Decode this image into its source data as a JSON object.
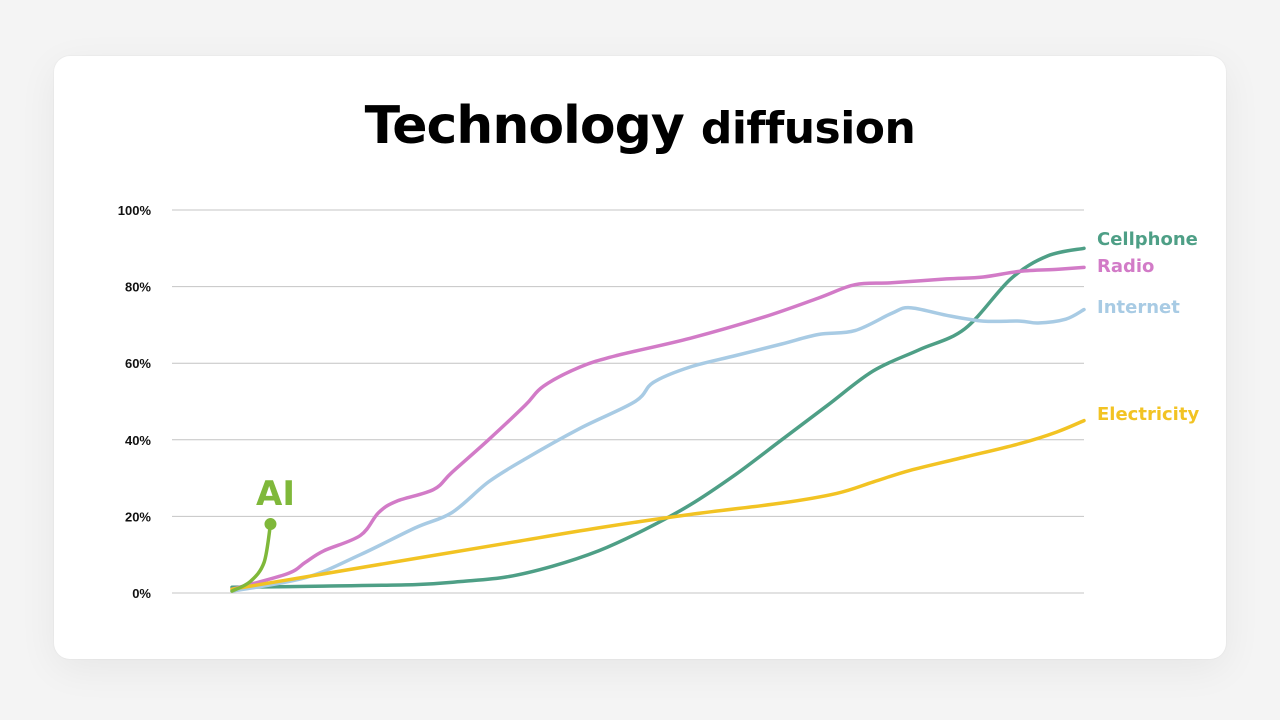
{
  "chart_data": {
    "type": "line",
    "title": "Technology",
    "subtitle": "diffusion",
    "ylim": [
      0,
      100
    ],
    "xlim": [
      0,
      100
    ],
    "y_ticks": [
      {
        "value": 0,
        "label": "0%"
      },
      {
        "value": 20,
        "label": "20%"
      },
      {
        "value": 40,
        "label": "40%"
      },
      {
        "value": 60,
        "label": "60%"
      },
      {
        "value": 80,
        "label": "80%"
      },
      {
        "value": 100,
        "label": "100%"
      }
    ],
    "grid": true,
    "legend": "inline-right",
    "series": [
      {
        "name": "Cellphone",
        "color": "#4e9f86",
        "points": [
          [
            0,
            1.5
          ],
          [
            10,
            1.8
          ],
          [
            20,
            2.2
          ],
          [
            25,
            3
          ],
          [
            30,
            4.2
          ],
          [
            35,
            7
          ],
          [
            40,
            11
          ],
          [
            45,
            16.5
          ],
          [
            50,
            23
          ],
          [
            55,
            31
          ],
          [
            60,
            40
          ],
          [
            65,
            49
          ],
          [
            70,
            58
          ],
          [
            75,
            63.5
          ],
          [
            80,
            69
          ],
          [
            85,
            82
          ],
          [
            89,
            88
          ],
          [
            93,
            90
          ]
        ]
      },
      {
        "name": "Radio",
        "color": "#d27bc7",
        "points": [
          [
            0,
            1
          ],
          [
            6,
            5
          ],
          [
            8,
            8
          ],
          [
            10,
            11
          ],
          [
            14,
            15
          ],
          [
            16,
            21
          ],
          [
            18,
            24
          ],
          [
            22,
            27
          ],
          [
            24,
            31.5
          ],
          [
            28,
            40
          ],
          [
            32,
            49
          ],
          [
            34,
            54
          ],
          [
            38,
            59
          ],
          [
            42,
            62
          ],
          [
            50,
            66.5
          ],
          [
            58,
            72
          ],
          [
            64,
            77
          ],
          [
            68,
            80.5
          ],
          [
            72,
            81
          ],
          [
            78,
            82
          ],
          [
            82,
            82.5
          ],
          [
            86,
            84
          ],
          [
            90,
            84.5
          ],
          [
            93,
            85
          ]
        ]
      },
      {
        "name": "Internet",
        "color": "#a8cbe4",
        "points": [
          [
            0,
            0.5
          ],
          [
            8,
            4
          ],
          [
            14,
            10
          ],
          [
            20,
            17
          ],
          [
            24,
            21
          ],
          [
            28,
            29
          ],
          [
            32,
            35
          ],
          [
            38,
            43
          ],
          [
            44,
            50
          ],
          [
            46,
            55
          ],
          [
            50,
            59
          ],
          [
            55,
            62
          ],
          [
            60,
            65
          ],
          [
            64,
            67.5
          ],
          [
            68,
            68.5
          ],
          [
            72,
            73
          ],
          [
            74,
            74.5
          ],
          [
            78,
            72.5
          ],
          [
            82,
            71
          ],
          [
            86,
            71
          ],
          [
            88,
            70.5
          ],
          [
            91,
            71.5
          ],
          [
            93,
            74
          ]
        ]
      },
      {
        "name": "Electricity",
        "color": "#f2c323",
        "points": [
          [
            0,
            1
          ],
          [
            10,
            5
          ],
          [
            20,
            9
          ],
          [
            30,
            13
          ],
          [
            40,
            17
          ],
          [
            50,
            20.5
          ],
          [
            60,
            23.5
          ],
          [
            66,
            26
          ],
          [
            70,
            29
          ],
          [
            74,
            32
          ],
          [
            80,
            35.5
          ],
          [
            86,
            39
          ],
          [
            90,
            42
          ],
          [
            93,
            45
          ]
        ]
      },
      {
        "name": "AI",
        "color": "#7fb83a",
        "points": [
          [
            0,
            0.5
          ],
          [
            2,
            3
          ],
          [
            3.5,
            8
          ],
          [
            4.2,
            18
          ]
        ]
      }
    ]
  }
}
